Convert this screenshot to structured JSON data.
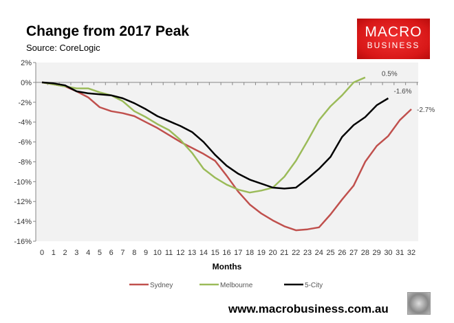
{
  "header": {
    "title": "Change from 2017 Peak",
    "source": "Source: CoreLogic"
  },
  "logo": {
    "line1": "MACRO",
    "line2": "BUSINESS"
  },
  "footer": {
    "url": "www.macrobusiness.com.au"
  },
  "chart_data": {
    "type": "line",
    "title": "Change from 2017 Peak",
    "subtitle": "Source: CoreLogic",
    "xlabel": "Months",
    "ylabel": "",
    "xlim": [
      0,
      32
    ],
    "ylim": [
      -16,
      2
    ],
    "yticks": [
      2,
      0,
      -2,
      -4,
      -6,
      -8,
      -10,
      -12,
      -14,
      -16
    ],
    "ytick_labels": [
      "2%",
      "0%",
      "-2%",
      "-4%",
      "-6%",
      "-8%",
      "-10%",
      "-12%",
      "-14%",
      "-16%"
    ],
    "xticks": [
      0,
      1,
      2,
      3,
      4,
      5,
      6,
      7,
      8,
      9,
      10,
      11,
      12,
      13,
      14,
      15,
      16,
      17,
      18,
      19,
      20,
      21,
      22,
      23,
      24,
      25,
      26,
      27,
      28,
      29,
      30,
      31,
      32
    ],
    "grid": false,
    "legend": "bottom",
    "series": [
      {
        "name": "Sydney",
        "color": "#c0504d",
        "end_label": "-2.7%",
        "values": [
          0,
          -0.2,
          -0.4,
          -0.9,
          -1.5,
          -2.5,
          -2.9,
          -3.1,
          -3.4,
          -4.0,
          -4.6,
          -5.3,
          -6.0,
          -6.6,
          -7.2,
          -7.9,
          -9.4,
          -11.0,
          -12.3,
          -13.2,
          -13.9,
          -14.5,
          -14.9,
          -14.8,
          -14.6,
          -13.3,
          -11.8,
          -10.4,
          -8.0,
          -6.4,
          -5.4,
          -3.8,
          -2.7
        ]
      },
      {
        "name": "Melbourne",
        "color": "#9bbb59",
        "end_label": "0.5%",
        "values": [
          0,
          -0.2,
          -0.4,
          -0.6,
          -0.6,
          -1.0,
          -1.3,
          -1.9,
          -2.9,
          -3.5,
          -4.2,
          -4.8,
          -5.8,
          -7.1,
          -8.7,
          -9.6,
          -10.3,
          -10.8,
          -11.1,
          -10.9,
          -10.6,
          -9.5,
          -7.9,
          -5.9,
          -3.8,
          -2.4,
          -1.3,
          0.0,
          0.5
        ]
      },
      {
        "name": "5-City",
        "color": "#000000",
        "end_label": "-1.6%",
        "values": [
          0,
          -0.1,
          -0.3,
          -0.9,
          -1.1,
          -1.2,
          -1.3,
          -1.6,
          -2.1,
          -2.7,
          -3.4,
          -3.9,
          -4.4,
          -5.0,
          -6.0,
          -7.3,
          -8.4,
          -9.2,
          -9.8,
          -10.2,
          -10.6,
          -10.7,
          -10.6,
          -9.7,
          -8.7,
          -7.5,
          -5.5,
          -4.3,
          -3.5,
          -2.3,
          -1.6
        ]
      }
    ]
  }
}
